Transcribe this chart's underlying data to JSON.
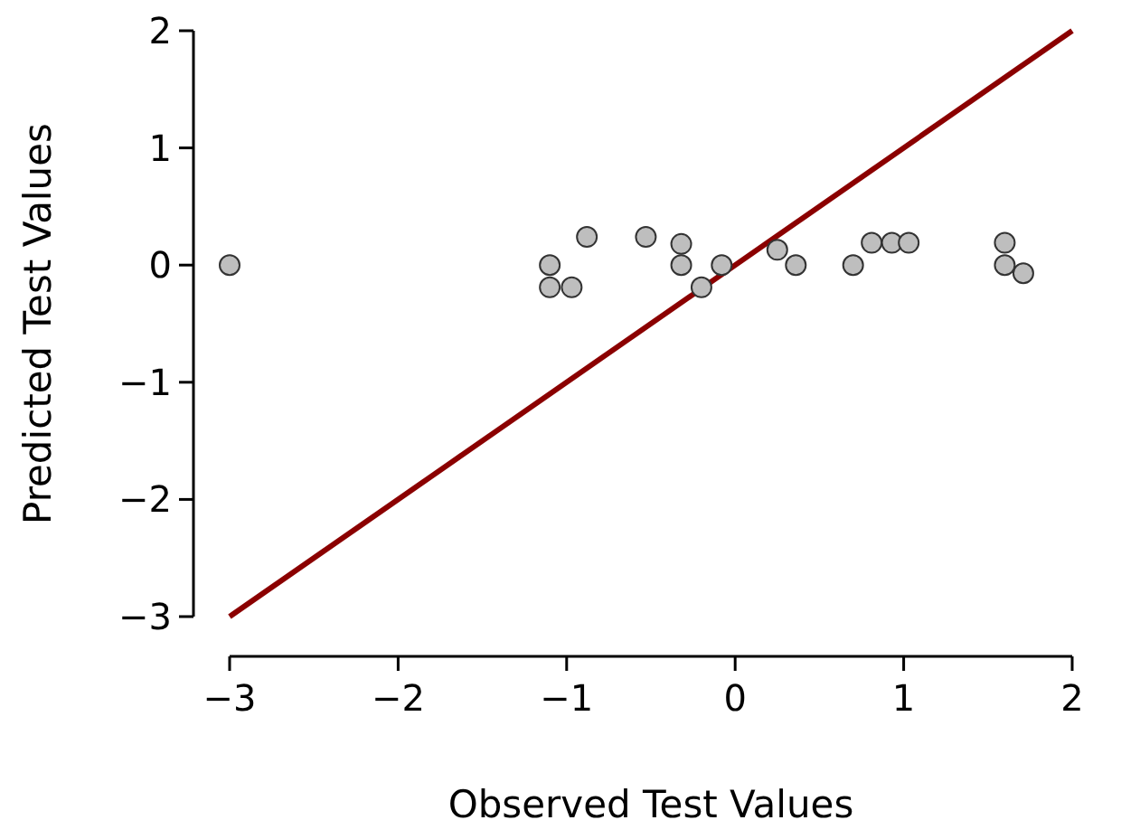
{
  "chart_data": {
    "type": "scatter",
    "xlabel": "Observed Test Values",
    "ylabel": "Predicted Test Values",
    "xlim": [
      -3,
      2
    ],
    "ylim": [
      -3,
      2
    ],
    "xticks": [
      -3,
      -2,
      -1,
      0,
      1,
      2
    ],
    "yticks": [
      -3,
      -2,
      -1,
      0,
      1,
      2
    ],
    "grid": false,
    "series": [
      {
        "color": "#bebebe",
        "marker": "circle",
        "x": [
          -3,
          -1.1,
          -1.1,
          -0.97,
          -0.88,
          -0.53,
          -0.32,
          -0.32,
          -0.2,
          -0.08,
          0.25,
          0.36,
          0.7,
          0.81,
          0.93,
          1.03,
          1.6,
          1.6,
          1.71
        ],
        "values": [
          0,
          0,
          -0.19,
          -0.19,
          0.24,
          0.24,
          0.18,
          0,
          -0.19,
          0,
          0.13,
          0,
          0,
          0.19,
          0.19,
          0.19,
          0.19,
          0,
          -0.07
        ]
      },
      {
        "type": "line",
        "color": "#8b0000",
        "x": [
          -3,
          2
        ],
        "values": [
          -3,
          2
        ],
        "line_style": "solid"
      }
    ]
  }
}
